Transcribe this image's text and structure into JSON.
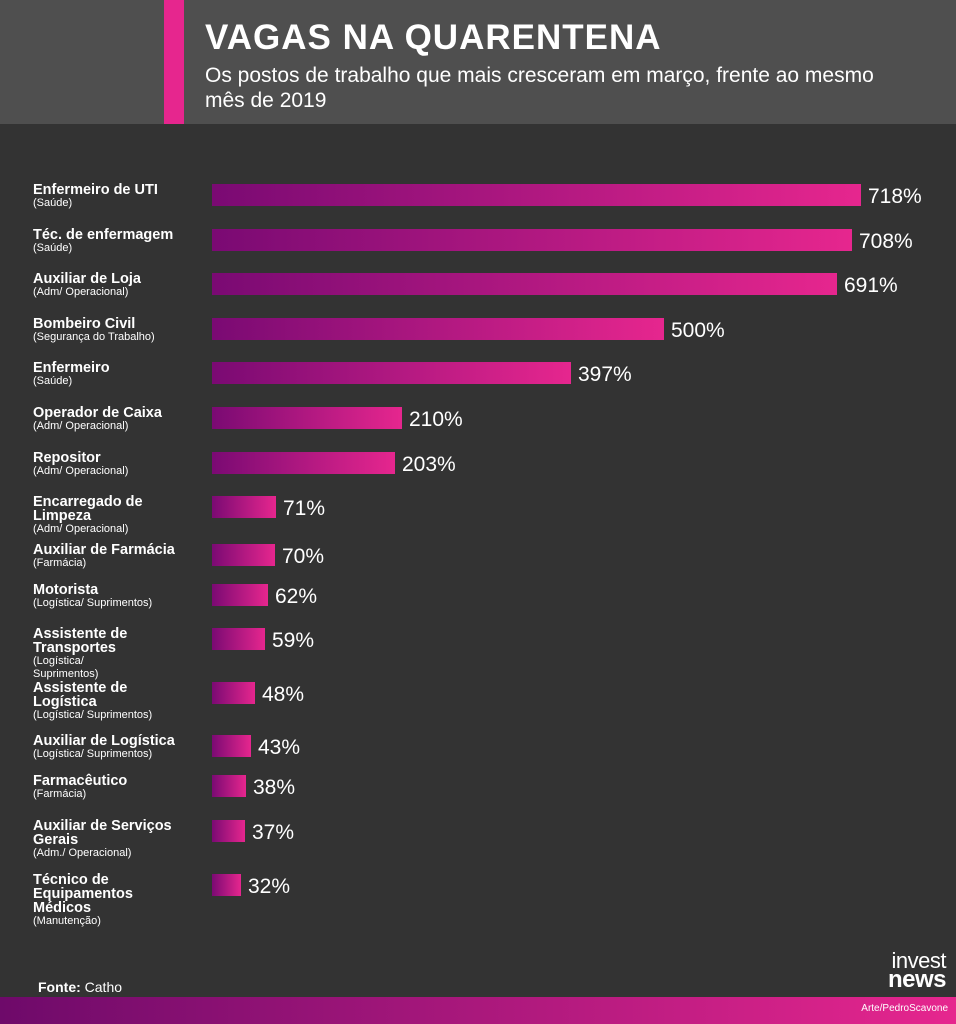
{
  "header": {
    "title": "VAGAS NA QUARENTENA",
    "subtitle": "Os postos de trabalho que mais cresceram em março, frente ao mesmo mês de 2019"
  },
  "colors": {
    "background": "#333333",
    "header_bg": "#4f4f4f",
    "accent": "#e6268e",
    "bar_start": "#7a0a73",
    "bar_end": "#e6268e"
  },
  "chart_data": {
    "type": "bar",
    "orientation": "horizontal",
    "title": "VAGAS NA QUARENTENA",
    "subtitle": "Os postos de trabalho que mais cresceram em março, frente ao mesmo mês de 2019",
    "categories": [
      {
        "name": "Enfermeiro de UTI",
        "sector": "(Saúde)"
      },
      {
        "name": "Téc. de enfermagem",
        "sector": "(Saúde)"
      },
      {
        "name": "Auxiliar de Loja",
        "sector": "(Adm/ Operacional)"
      },
      {
        "name": "Bombeiro Civil",
        "sector": "(Segurança do Trabalho)"
      },
      {
        "name": "Enfermeiro",
        "sector": "(Saúde)"
      },
      {
        "name": "Operador de Caixa",
        "sector": "(Adm/ Operacional)"
      },
      {
        "name": "Repositor",
        "sector": "(Adm/ Operacional)"
      },
      {
        "name": "Encarregado de Limpeza",
        "sector": "(Adm/ Operacional)"
      },
      {
        "name": "Auxiliar de Farmácia",
        "sector": "(Farmácia)"
      },
      {
        "name": "Motorista",
        "sector": "(Logística/ Suprimentos)"
      },
      {
        "name": "Assistente de Transportes",
        "sector": "(Logística/ Suprimentos)"
      },
      {
        "name": "Assistente de Logística",
        "sector": "(Logística/ Suprimentos)"
      },
      {
        "name": "Auxiliar de Logística",
        "sector": "(Logística/ Suprimentos)"
      },
      {
        "name": "Farmacêutico",
        "sector": "(Farmácia)"
      },
      {
        "name": "Auxiliar de Serviços Gerais",
        "sector": "(Adm./ Operacional)"
      },
      {
        "name": "Técnico de Equipamentos Médicos",
        "sector": "(Manutenção)"
      }
    ],
    "values": [
      718,
      708,
      691,
      500,
      397,
      210,
      203,
      71,
      70,
      62,
      59,
      48,
      43,
      38,
      37,
      32
    ],
    "value_labels": [
      "718%",
      "708%",
      "691%",
      "500%",
      "397%",
      "210%",
      "203%",
      "71%",
      "70%",
      "62%",
      "59%",
      "48%",
      "43%",
      "38%",
      "37%",
      "32%"
    ],
    "unit": "%",
    "xlim": [
      0,
      718
    ],
    "grid": false,
    "legend": "none"
  },
  "footer": {
    "source_label": "Fonte:",
    "source_value": " Catho",
    "logo_top": "invest",
    "logo_bottom": "news",
    "credit": "Arte/PedroScavone"
  }
}
